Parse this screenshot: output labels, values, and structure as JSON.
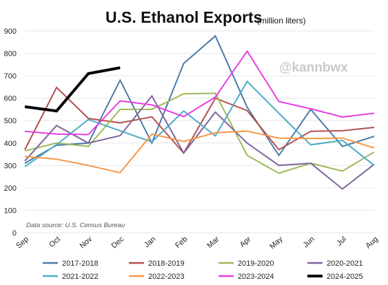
{
  "chart_data": {
    "type": "line",
    "title": "U.S. Ethanol Exports",
    "subtitle": "(million liters)",
    "watermark": "@kannbwx",
    "source": "Data source: U.S. Census Bureau",
    "categories": [
      "Sep",
      "Oct",
      "Nov",
      "Dec",
      "Jan",
      "Feb",
      "Mar",
      "Apr",
      "May",
      "Jun",
      "Jul",
      "Aug"
    ],
    "ylim": [
      0,
      900
    ],
    "yticks": [
      0,
      100,
      200,
      300,
      400,
      500,
      600,
      700,
      800,
      900
    ],
    "ytick_labels": [
      "0",
      "100",
      "200",
      "300",
      "400",
      "500",
      "600",
      "700",
      "800",
      "900"
    ],
    "grid": "horizontal",
    "legend_placement": "bottom",
    "series": [
      {
        "name": "2017-2018",
        "color": "#4c79a8",
        "width": 2,
        "values": [
          310,
          390,
          400,
          680,
          400,
          755,
          878,
          560,
          345,
          550,
          385,
          430
        ]
      },
      {
        "name": "2018-2019",
        "color": "#b5504e",
        "width": 2,
        "values": [
          370,
          648,
          510,
          490,
          517,
          355,
          600,
          545,
          370,
          452,
          455,
          470
        ]
      },
      {
        "name": "2019-2020",
        "color": "#9bba58",
        "width": 2,
        "values": [
          365,
          400,
          385,
          550,
          550,
          620,
          622,
          345,
          265,
          310,
          275,
          360
        ]
      },
      {
        "name": "2020-2021",
        "color": "#7f649e",
        "width": 2,
        "values": [
          320,
          478,
          400,
          433,
          610,
          355,
          538,
          400,
          300,
          310,
          195,
          305
        ]
      },
      {
        "name": "2021-2022",
        "color": "#4aacc6",
        "width": 2,
        "values": [
          295,
          393,
          505,
          455,
          405,
          543,
          432,
          675,
          533,
          392,
          412,
          300
        ]
      },
      {
        "name": "2022-2023",
        "color": "#f79646",
        "width": 2,
        "values": [
          340,
          328,
          300,
          268,
          440,
          407,
          446,
          453,
          422,
          420,
          422,
          378
        ]
      },
      {
        "name": "2023-2024",
        "color": "#e83de3",
        "width": 2,
        "values": [
          452,
          440,
          438,
          588,
          570,
          518,
          605,
          810,
          585,
          553,
          516,
          533
        ]
      },
      {
        "name": "2024-2025",
        "color": "#000000",
        "width": 4,
        "values": [
          562,
          543,
          710,
          736,
          null,
          null,
          null,
          null,
          null,
          null,
          null,
          null
        ]
      }
    ]
  }
}
